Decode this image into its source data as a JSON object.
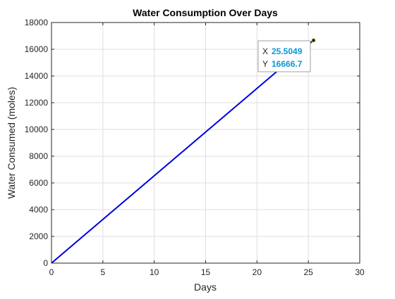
{
  "chart_data": {
    "type": "line",
    "title": "Water Consumption Over Days",
    "xlabel": "Days",
    "ylabel": "Water Consumed (moles)",
    "xlim": [
      0,
      30
    ],
    "ylim": [
      0,
      18000
    ],
    "xticks": [
      0,
      5,
      10,
      15,
      20,
      25,
      30
    ],
    "yticks": [
      0,
      2000,
      4000,
      6000,
      8000,
      10000,
      12000,
      14000,
      16000,
      18000
    ],
    "grid": true,
    "series": [
      {
        "color": "#0000e0",
        "x": [
          0,
          25.5049
        ],
        "y": [
          0,
          16666.7
        ]
      }
    ],
    "datatip": {
      "x_key": "X",
      "y_key": "Y",
      "x_value": "25.5049",
      "y_value": "16666.7",
      "x": 25.5049,
      "y": 16666.7
    }
  }
}
